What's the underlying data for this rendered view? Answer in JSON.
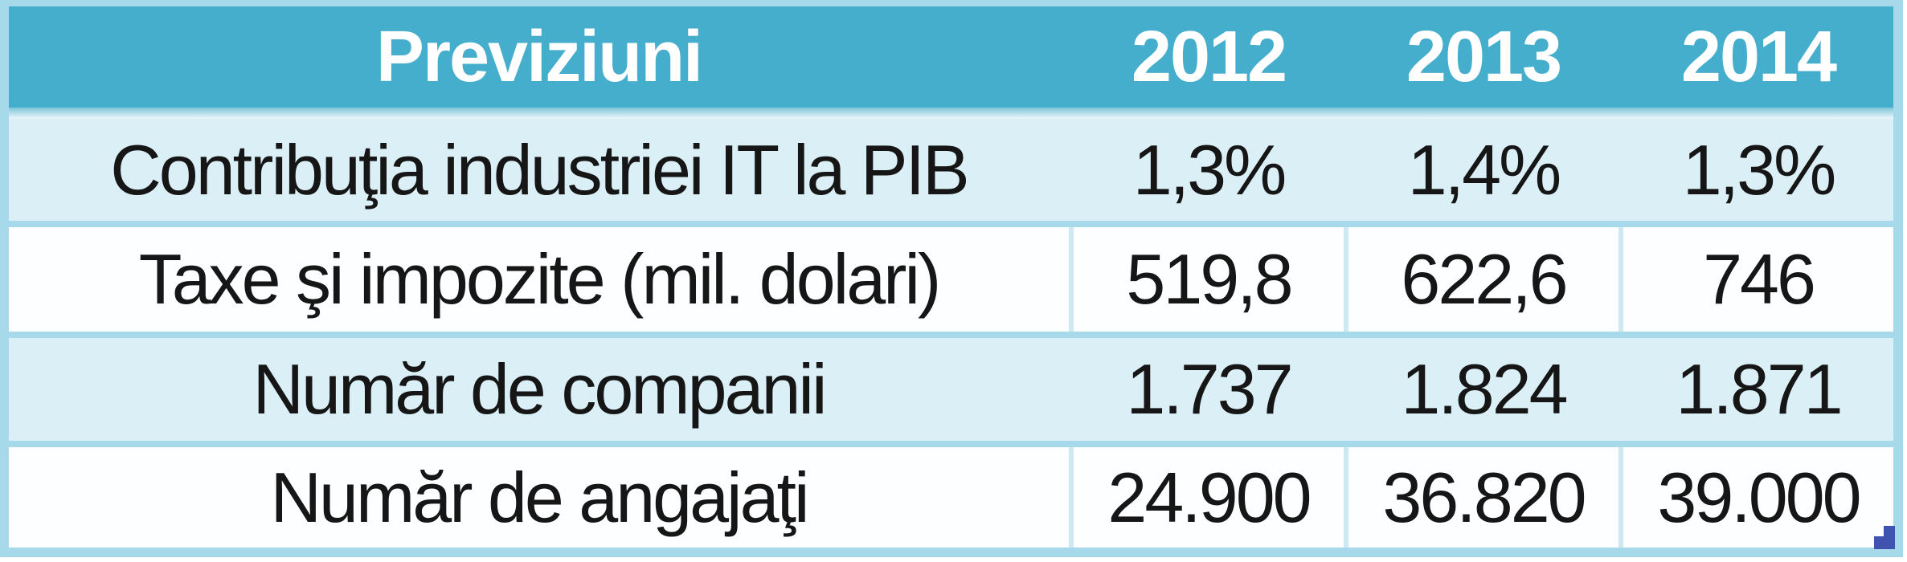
{
  "chart_data": {
    "type": "table",
    "title": "Previziuni",
    "columns": [
      "Previziuni",
      "2012",
      "2013",
      "2014"
    ],
    "rows": [
      [
        "Contribuţia industriei IT la PIB",
        "1,3%",
        "1,4%",
        "1,3%"
      ],
      [
        "Taxe şi impozite (mil. dolari)",
        "519,8",
        "622,6",
        "746"
      ],
      [
        "Număr de companii",
        "1.737",
        "1.824",
        "1.871"
      ],
      [
        "Număr de angajaţi",
        "24.900",
        "36.820",
        "39.000"
      ]
    ],
    "layout": {
      "header_position": "top",
      "zebra_striping": true,
      "first_column_role": "row-label",
      "value_alignment": "center"
    }
  },
  "colors": {
    "header_bg": "#45aecd",
    "header_text": "#ffffff",
    "row_alt_bg": "#dbeff7",
    "row_white_bg": "#fdfeff",
    "frame_border": "#a6daeb",
    "cell_divider": "#cfe9f3",
    "body_text": "#161616",
    "corner_decoration": "#4053ae"
  }
}
